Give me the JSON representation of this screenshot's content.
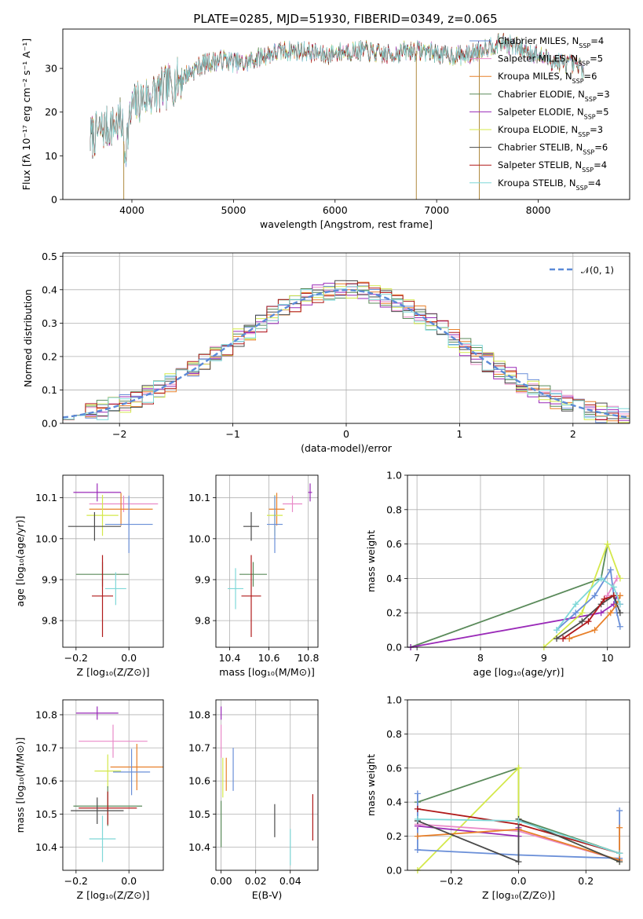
{
  "figure": {
    "title": "PLATE=0285, MJD=51930, FIBERID=0349, z=0.065"
  },
  "chart_data": [
    {
      "id": "spectrum",
      "type": "line",
      "title": "PLATE=0285, MJD=51930, FIBERID=0349, z=0.065",
      "xlabel": "wavelength [Angstrom, rest frame]",
      "ylabel": "Flux [fλ 10⁻¹⁷ erg cm⁻² s⁻¹ A⁻¹]",
      "xlim": [
        3320,
        8900
      ],
      "ylim": [
        0,
        39
      ],
      "xticks": [
        4000,
        5000,
        6000,
        7000,
        8000
      ],
      "yticks": [
        0,
        10,
        20,
        30
      ],
      "grid": false,
      "legend_placement": "right",
      "continuum": {
        "x": [
          3590,
          3700,
          3900,
          3930,
          4000,
          4100,
          4300,
          4500,
          4700,
          4900,
          5100,
          5300,
          5500,
          5700,
          5900,
          6100,
          6300,
          6500,
          6700,
          6900,
          7100,
          7300,
          7500,
          7650,
          7900,
          8100,
          8300,
          8450
        ],
        "y": [
          14,
          16,
          18,
          11,
          21,
          23,
          25,
          28,
          31,
          32,
          31,
          33,
          34,
          34,
          33,
          34,
          34,
          33,
          34,
          34,
          33,
          33,
          35,
          36,
          34,
          32,
          31,
          30
        ]
      },
      "series": [
        {
          "name": "Chabrier MILES, NSSP=4",
          "color": "#6a8fd8"
        },
        {
          "name": "Salpeter MILES, NSSP=5",
          "color": "#e98ac8"
        },
        {
          "name": "Kroupa MILES, NSSP=6",
          "color": "#e8802a"
        },
        {
          "name": "Chabrier ELODIE, NSSP=3",
          "color": "#5a8a5a"
        },
        {
          "name": "Salpeter ELODIE, NSSP=5",
          "color": "#9a2ab8"
        },
        {
          "name": "Kroupa ELODIE, NSSP=3",
          "color": "#d4e84a"
        },
        {
          "name": "Chabrier STELIB, NSSP=6",
          "color": "#4a4a4a"
        },
        {
          "name": "Salpeter STELIB, NSSP=4",
          "color": "#b01a1a"
        },
        {
          "name": "Kroupa STELIB, NSSP=4",
          "color": "#7fd8d8"
        }
      ],
      "legend_labels": [
        "Chabrier MILES, N",
        "Salpeter MILES, N",
        "Kroupa MILES, N",
        "Chabrier ELODIE, N",
        "Salpeter ELODIE, N",
        "Kroupa ELODIE, N",
        "Chabrier STELIB, N",
        "Salpeter STELIB, N",
        "Kroupa STELIB, N"
      ],
      "legend_subscript": "SSP",
      "legend_counts": [
        "=4",
        "=5",
        "=6",
        "=3",
        "=5",
        "=3",
        "=6",
        "=4",
        "=4"
      ]
    },
    {
      "id": "residuals",
      "type": "line",
      "xlabel": "(data-model)/error",
      "ylabel": "Normed distribution",
      "xlim": [
        -2.5,
        2.5
      ],
      "ylim": [
        0,
        0.51
      ],
      "xticks": [
        -2,
        -1,
        0,
        1,
        2
      ],
      "xtick_labels": [
        "−2",
        "−1",
        "0",
        "1",
        "2"
      ],
      "yticks": [
        0.0,
        0.1,
        0.2,
        0.3,
        0.4,
        0.5
      ],
      "ytick_labels": [
        "0.0",
        "0.1",
        "0.2",
        "0.3",
        "0.4",
        "0.5"
      ],
      "grid": true,
      "legend_placement": "top-right",
      "legend_label": "𝒩(0, 1)",
      "reference_curve": {
        "name": "N(0,1)",
        "color": "#5b8ad8",
        "style": "dashed"
      },
      "bin_width": 0.1
    },
    {
      "id": "age-vs-z",
      "type": "scatter",
      "xlabel": "Z [log₁₀(Z/Z⊙)]",
      "ylabel": "age  [log₁₀(age/yr)]",
      "xlim": [
        -0.25,
        0.13
      ],
      "ylim": [
        9.735,
        10.155
      ],
      "xticks": [
        -0.2,
        0.0
      ],
      "xtick_labels": [
        "−0.2",
        "0.0"
      ],
      "yticks": [
        9.8,
        9.9,
        10.0,
        10.1
      ],
      "ytick_labels": [
        "9.8",
        "9.9",
        "10.0",
        "10.1"
      ],
      "grid": true,
      "points": [
        {
          "color": "#9a2ab8",
          "x": -0.12,
          "y": 10.113,
          "xerr": 0.09,
          "yerr": 0.022
        },
        {
          "color": "#e98ac8",
          "x": -0.02,
          "y": 10.085,
          "xerr": 0.13,
          "yerr": 0.02
        },
        {
          "color": "#e8802a",
          "x": -0.03,
          "y": 10.072,
          "xerr": 0.12,
          "yerr": 0.04
        },
        {
          "color": "#d4e84a",
          "x": -0.1,
          "y": 10.057,
          "xerr": 0.06,
          "yerr": 0.05
        },
        {
          "color": "#6a8fd8",
          "x": 0.0,
          "y": 10.035,
          "xerr": 0.09,
          "yerr": 0.07
        },
        {
          "color": "#4a4a4a",
          "x": -0.13,
          "y": 10.03,
          "xerr": 0.1,
          "yerr": 0.035
        },
        {
          "color": "#5a8a5a",
          "x": -0.1,
          "y": 9.913,
          "xerr": 0.1,
          "yerr": 0.03
        },
        {
          "color": "#7fd8d8",
          "x": -0.05,
          "y": 9.878,
          "xerr": 0.04,
          "yerr": 0.04
        },
        {
          "color": "#b01a1a",
          "x": -0.1,
          "y": 9.86,
          "xerr": 0.04,
          "yerr": 0.1
        }
      ]
    },
    {
      "id": "age-vs-mass",
      "type": "scatter",
      "xlabel": "mass [log₁₀(M/M⊙)]",
      "xlim": [
        10.33,
        10.85
      ],
      "ylim": [
        9.735,
        10.155
      ],
      "xticks": [
        10.4,
        10.6,
        10.8
      ],
      "xtick_labels": [
        "10.4",
        "10.6",
        "10.8"
      ],
      "yticks": [
        9.8,
        9.9,
        10.0,
        10.1
      ],
      "ytick_labels": [
        "9.8",
        "9.9",
        "10.0",
        "10.1"
      ],
      "grid": true,
      "points": [
        {
          "color": "#9a2ab8",
          "x": 10.81,
          "y": 10.113,
          "xerr": 0.01,
          "yerr": 0.022
        },
        {
          "color": "#e98ac8",
          "x": 10.72,
          "y": 10.085,
          "xerr": 0.05,
          "yerr": 0.02
        },
        {
          "color": "#e8802a",
          "x": 10.64,
          "y": 10.072,
          "xerr": 0.04,
          "yerr": 0.04
        },
        {
          "color": "#d4e84a",
          "x": 10.63,
          "y": 10.057,
          "xerr": 0.04,
          "yerr": 0.05
        },
        {
          "color": "#6a8fd8",
          "x": 10.63,
          "y": 10.035,
          "xerr": 0.04,
          "yerr": 0.07
        },
        {
          "color": "#4a4a4a",
          "x": 10.51,
          "y": 10.03,
          "xerr": 0.04,
          "yerr": 0.035
        },
        {
          "color": "#5a8a5a",
          "x": 10.52,
          "y": 9.913,
          "xerr": 0.07,
          "yerr": 0.03
        },
        {
          "color": "#7fd8d8",
          "x": 10.43,
          "y": 9.878,
          "xerr": 0.04,
          "yerr": 0.05
        },
        {
          "color": "#b01a1a",
          "x": 10.51,
          "y": 9.86,
          "xerr": 0.05,
          "yerr": 0.1
        }
      ]
    },
    {
      "id": "weight-vs-age",
      "type": "line",
      "xlabel": "age  [log₁₀(age/yr)]",
      "ylabel": "mass weight",
      "xlim": [
        6.85,
        10.35
      ],
      "ylim": [
        0,
        1
      ],
      "xticks": [
        7,
        8,
        9,
        10
      ],
      "yticks": [
        0.0,
        0.2,
        0.4,
        0.6,
        0.8,
        1.0
      ],
      "ytick_labels": [
        "0.0",
        "0.2",
        "0.4",
        "0.6",
        "0.8",
        "1.0"
      ],
      "grid": true,
      "series": [
        {
          "color": "#5a8a5a",
          "x": [
            6.9,
            9.9,
            10.0
          ],
          "y": [
            0.0,
            0.4,
            0.6
          ]
        },
        {
          "color": "#9a2ab8",
          "x": [
            6.9,
            9.9,
            10.1,
            10.15,
            10.2
          ],
          "y": [
            0.0,
            0.2,
            0.25,
            0.3,
            0.25
          ]
        },
        {
          "color": "#d4e84a",
          "x": [
            9.0,
            9.6,
            10.0,
            10.2
          ],
          "y": [
            0.0,
            0.2,
            0.6,
            0.4
          ]
        },
        {
          "color": "#6a8fd8",
          "x": [
            9.2,
            9.5,
            9.8,
            10.05,
            10.1,
            10.15,
            10.2
          ],
          "y": [
            0.1,
            0.2,
            0.3,
            0.45,
            0.3,
            0.2,
            0.12
          ]
        },
        {
          "color": "#e8802a",
          "x": [
            9.4,
            9.8,
            10.05,
            10.15,
            10.2
          ],
          "y": [
            0.05,
            0.1,
            0.2,
            0.25,
            0.3
          ]
        },
        {
          "color": "#e98ac8",
          "x": [
            9.3,
            9.7,
            10.0,
            10.15
          ],
          "y": [
            0.05,
            0.15,
            0.3,
            0.4
          ]
        },
        {
          "color": "#4a4a4a",
          "x": [
            9.2,
            9.6,
            9.9,
            10.1,
            10.2
          ],
          "y": [
            0.05,
            0.15,
            0.25,
            0.3,
            0.2
          ]
        },
        {
          "color": "#b01a1a",
          "x": [
            9.3,
            9.7,
            9.95,
            10.1
          ],
          "y": [
            0.05,
            0.15,
            0.28,
            0.3
          ]
        },
        {
          "color": "#7fd8d8",
          "x": [
            9.2,
            9.5,
            9.9,
            10.1,
            10.2
          ],
          "y": [
            0.1,
            0.25,
            0.4,
            0.35,
            0.25
          ]
        }
      ]
    },
    {
      "id": "mass-vs-z",
      "type": "scatter",
      "xlabel": "Z [log₁₀(Z/Z⊙)]",
      "ylabel": "mass [log₁₀(M/M⊙)]",
      "xlim": [
        -0.25,
        0.13
      ],
      "ylim": [
        10.33,
        10.845
      ],
      "xticks": [
        -0.2,
        0.0
      ],
      "xtick_labels": [
        "−0.2",
        "0.0"
      ],
      "yticks": [
        10.4,
        10.5,
        10.6,
        10.7,
        10.8
      ],
      "ytick_labels": [
        "10.4",
        "10.5",
        "10.6",
        "10.7",
        "10.8"
      ],
      "grid": true,
      "points": [
        {
          "color": "#9a2ab8",
          "x": -0.12,
          "y": 10.805,
          "xerr": 0.08,
          "yerr": 0.02
        },
        {
          "color": "#e98ac8",
          "x": -0.06,
          "y": 10.72,
          "xerr": 0.13,
          "yerr": 0.05
        },
        {
          "color": "#e8802a",
          "x": 0.03,
          "y": 10.642,
          "xerr": 0.1,
          "yerr": 0.07
        },
        {
          "color": "#d4e84a",
          "x": -0.08,
          "y": 10.63,
          "xerr": 0.05,
          "yerr": 0.05
        },
        {
          "color": "#6a8fd8",
          "x": 0.01,
          "y": 10.627,
          "xerr": 0.07,
          "yerr": 0.07
        },
        {
          "color": "#5a8a5a",
          "x": -0.08,
          "y": 10.524,
          "xerr": 0.13,
          "yerr": 0.06
        },
        {
          "color": "#b01a1a",
          "x": -0.08,
          "y": 10.518,
          "xerr": 0.11,
          "yerr": 0.05
        },
        {
          "color": "#4a4a4a",
          "x": -0.12,
          "y": 10.51,
          "xerr": 0.1,
          "yerr": 0.04
        },
        {
          "color": "#7fd8d8",
          "x": -0.1,
          "y": 10.425,
          "xerr": 0.05,
          "yerr": 0.07
        }
      ]
    },
    {
      "id": "mass-vs-ebv",
      "type": "scatter",
      "xlabel": "E(B-V)",
      "xlim": [
        -0.003,
        0.056
      ],
      "ylim": [
        10.33,
        10.845
      ],
      "xticks": [
        0.0,
        0.02,
        0.04
      ],
      "xtick_labels": [
        "0.00",
        "0.02",
        "0.04"
      ],
      "yticks": [
        10.4,
        10.5,
        10.6,
        10.7,
        10.8
      ],
      "ytick_labels": [
        "10.4",
        "10.5",
        "10.6",
        "10.7",
        "10.8"
      ],
      "grid": true,
      "points": [
        {
          "color": "#9a2ab8",
          "x": 0.0,
          "y": 10.805,
          "xerr": 0,
          "yerr": 0.02
        },
        {
          "color": "#e98ac8",
          "x": 0.0,
          "y": 10.72,
          "xerr": 0,
          "yerr": 0.05
        },
        {
          "color": "#e8802a",
          "x": 0.003,
          "y": 10.62,
          "xerr": 0,
          "yerr": 0.05
        },
        {
          "color": "#d4e84a",
          "x": 0.001,
          "y": 10.61,
          "xerr": 0,
          "yerr": 0.06
        },
        {
          "color": "#6a8fd8",
          "x": 0.007,
          "y": 10.635,
          "xerr": 0,
          "yerr": 0.065
        },
        {
          "color": "#5a8a5a",
          "x": 0.0,
          "y": 10.47,
          "xerr": 0,
          "yerr": 0.07
        },
        {
          "color": "#4a4a4a",
          "x": 0.031,
          "y": 10.48,
          "xerr": 0,
          "yerr": 0.05
        },
        {
          "color": "#7fd8d8",
          "x": 0.04,
          "y": 10.4,
          "xerr": 0,
          "yerr": 0.055
        },
        {
          "color": "#b01a1a",
          "x": 0.053,
          "y": 10.49,
          "xerr": 0,
          "yerr": 0.07
        }
      ]
    },
    {
      "id": "weight-vs-z",
      "type": "line",
      "xlabel": "Z [log₁₀(Z/Z⊙)]",
      "ylabel": "mass weight",
      "xlim": [
        -0.33,
        0.33
      ],
      "ylim": [
        0,
        1
      ],
      "xticks": [
        -0.2,
        0.0,
        0.2
      ],
      "xtick_labels": [
        "−0.2",
        "0.0",
        "0.2"
      ],
      "yticks": [
        0.0,
        0.2,
        0.4,
        0.6,
        0.8,
        1.0
      ],
      "ytick_labels": [
        "0.0",
        "0.2",
        "0.4",
        "0.6",
        "0.8",
        "1.0"
      ],
      "grid": true,
      "series": [
        {
          "color": "#5a8a5a",
          "x": [
            -0.3,
            0.0,
            0.0,
            0.3
          ],
          "y": [
            0.4,
            0.6,
            0.3,
            0.1
          ]
        },
        {
          "color": "#d4e84a",
          "x": [
            -0.3,
            0.0,
            0.0,
            0.3
          ],
          "y": [
            0.0,
            0.6,
            0.3,
            0.05
          ]
        },
        {
          "color": "#6a8fd8",
          "x": [
            -0.3,
            -0.3,
            0.0,
            0.3,
            0.3
          ],
          "y": [
            0.45,
            0.12,
            0.09,
            0.07,
            0.35
          ]
        },
        {
          "color": "#9a2ab8",
          "x": [
            -0.3,
            0.0,
            0.0
          ],
          "y": [
            0.26,
            0.2,
            0.25
          ]
        },
        {
          "color": "#e98ac8",
          "x": [
            -0.3,
            0.0,
            0.3
          ],
          "y": [
            0.27,
            0.23,
            0.06
          ]
        },
        {
          "color": "#e8802a",
          "x": [
            -0.3,
            0.0,
            0.3,
            0.3
          ],
          "y": [
            0.2,
            0.24,
            0.06,
            0.25
          ]
        },
        {
          "color": "#b01a1a",
          "x": [
            -0.3,
            0.0,
            0.3
          ],
          "y": [
            0.36,
            0.27,
            0.1
          ]
        },
        {
          "color": "#4a4a4a",
          "x": [
            -0.3,
            0.0,
            0.0,
            0.3
          ],
          "y": [
            0.29,
            0.05,
            0.3,
            0.05
          ]
        },
        {
          "color": "#7fd8d8",
          "x": [
            -0.3,
            0.0,
            0.3
          ],
          "y": [
            0.3,
            0.29,
            0.1
          ]
        }
      ]
    }
  ]
}
